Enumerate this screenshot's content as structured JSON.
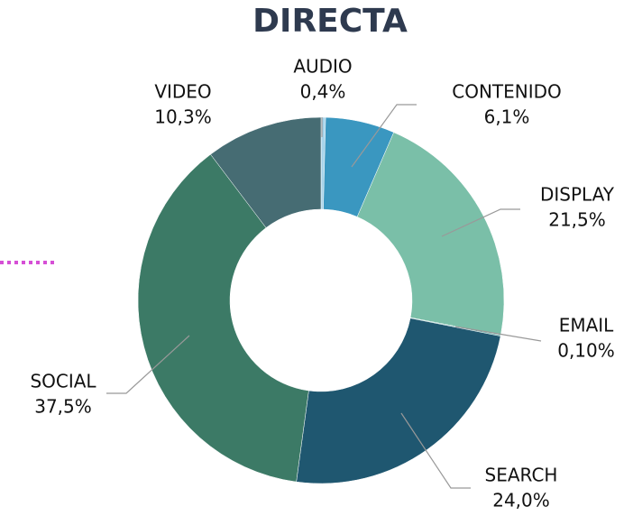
{
  "chart_data": {
    "type": "donut",
    "title": "DIRECTA",
    "categories": [
      "AUDIO",
      "CONTENIDO",
      "DISPLAY",
      "EMAIL",
      "SEARCH",
      "SOCIAL",
      "VIDEO"
    ],
    "values": [
      0.4,
      6.1,
      21.5,
      0.1,
      24.0,
      37.5,
      10.3
    ],
    "value_labels": [
      "0,4%",
      "6,1%",
      "21,5%",
      "0,10%",
      "24,0%",
      "37,5%",
      "10,3%"
    ],
    "colors": [
      "#a8d4ea",
      "#3a97c0",
      "#7abfa8",
      "#5aa6a0",
      "#1f5770",
      "#3c7a66",
      "#466c73"
    ]
  }
}
